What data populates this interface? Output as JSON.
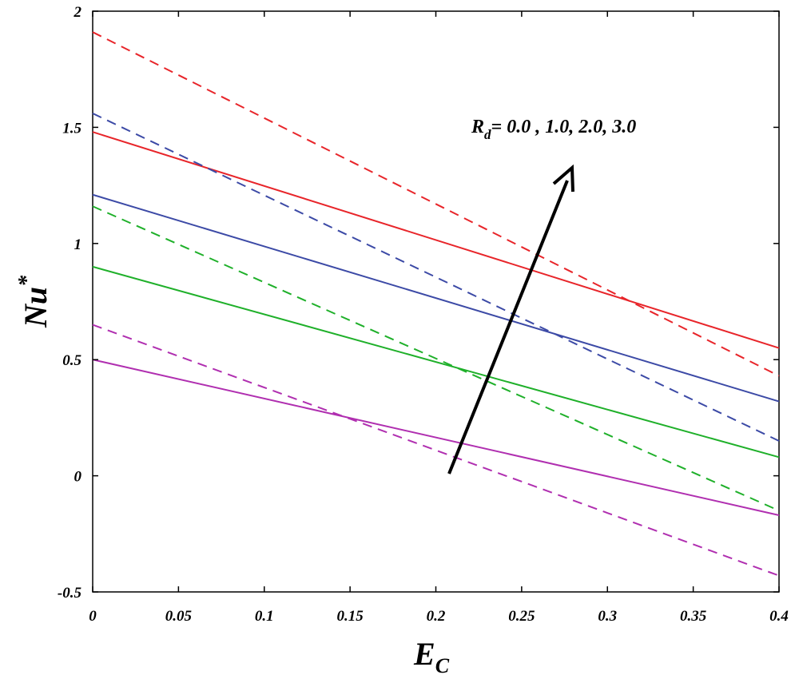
{
  "chart_data": {
    "type": "line",
    "xlabel": {
      "text": "E",
      "subscript": "C"
    },
    "ylabel": {
      "text": "Nu",
      "superscript": "*"
    },
    "annotation": {
      "text": "R",
      "subscript": "d",
      "rest": "= 0.0 , 1.0, 2.0, 3.0"
    },
    "x": [
      0,
      0.4
    ],
    "xlim": [
      0,
      0.4
    ],
    "ylim": [
      -0.5,
      2
    ],
    "xticks": [
      0,
      0.05,
      0.1,
      0.15,
      0.2,
      0.25,
      0.3,
      0.35,
      0.4
    ],
    "yticks": [
      -0.5,
      0,
      0.5,
      1,
      1.5,
      2
    ],
    "grid": false,
    "series": [
      {
        "color": "#e8252a",
        "linestyle": "solid",
        "values": [
          1.48,
          0.55
        ]
      },
      {
        "color": "#3c4aa6",
        "linestyle": "solid",
        "values": [
          1.21,
          0.32
        ]
      },
      {
        "color": "#1fb02a",
        "linestyle": "solid",
        "values": [
          0.9,
          0.08
        ]
      },
      {
        "color": "#b02fb0",
        "linestyle": "solid",
        "values": [
          0.5,
          -0.17
        ]
      },
      {
        "color": "#e8252a",
        "linestyle": "dashed",
        "values": [
          1.91,
          0.43
        ]
      },
      {
        "color": "#3c4aa6",
        "linestyle": "dashed",
        "values": [
          1.56,
          0.15
        ]
      },
      {
        "color": "#1fb02a",
        "linestyle": "dashed",
        "values": [
          1.16,
          -0.15
        ]
      },
      {
        "color": "#b02fb0",
        "linestyle": "dashed",
        "values": [
          0.65,
          -0.43
        ]
      }
    ]
  }
}
